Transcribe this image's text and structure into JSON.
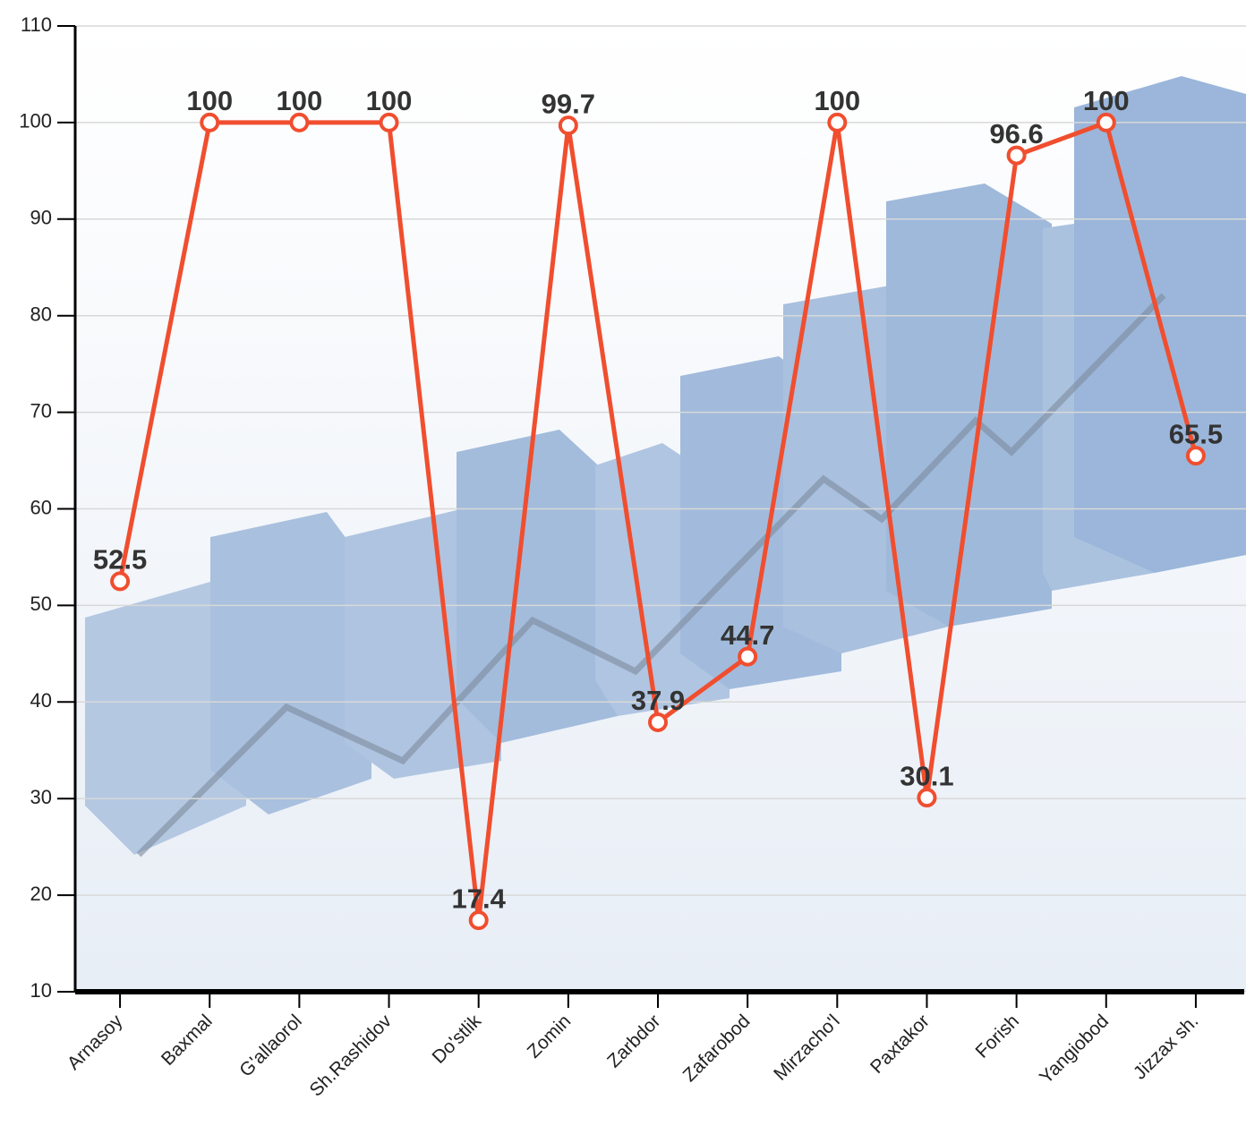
{
  "chart_data": {
    "type": "line",
    "categories": [
      "Arnasoy",
      "Baxmal",
      "G'allaorol",
      "Sh.Rashidov",
      "Do'stlik",
      "Zomin",
      "Zarbdor",
      "Zafarobod",
      "Mirzacho'l",
      "Paxtakor",
      "Forish",
      "Yangiobod",
      "Jizzax sh."
    ],
    "values": [
      52.5,
      100,
      100,
      100,
      17.4,
      99.7,
      37.9,
      44.7,
      100,
      30.1,
      96.6,
      100,
      65.5
    ],
    "color": "#f04e2f",
    "ylim": [
      10,
      110
    ],
    "yticks": [
      10,
      20,
      30,
      40,
      50,
      60,
      70,
      80,
      90,
      100,
      110
    ],
    "grid": true
  }
}
